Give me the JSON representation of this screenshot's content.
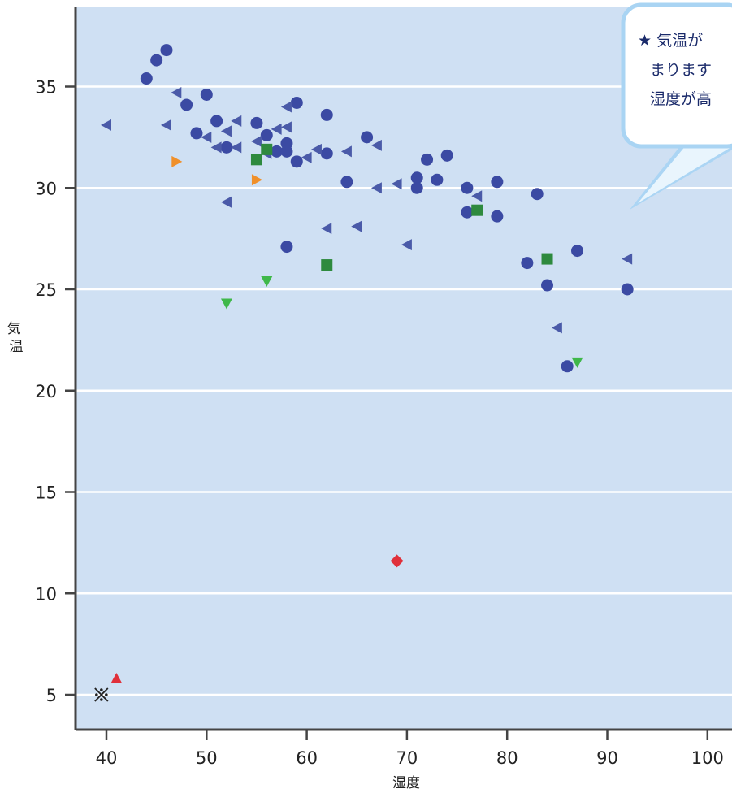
{
  "chart_data": {
    "type": "scatter",
    "title": "",
    "xlabel": "湿度",
    "ylabel": "気温",
    "xlim": [
      37,
      102
    ],
    "ylim": [
      3,
      38.5
    ],
    "xticks": [
      40,
      50,
      60,
      70,
      80,
      90,
      100
    ],
    "yticks": [
      5,
      10,
      15,
      20,
      25,
      30,
      35
    ],
    "grid": "horizontal",
    "background": "#cfe0f3",
    "annotation": {
      "lines": [
        "★ 気温が",
        "まります",
        "湿度が高"
      ]
    },
    "series": [
      {
        "marker": "circle",
        "color": "#3b4aa3",
        "points": [
          [
            44,
            35.4
          ],
          [
            45,
            36.3
          ],
          [
            46,
            36.8
          ],
          [
            48,
            34.1
          ],
          [
            49,
            32.7
          ],
          [
            50,
            34.6
          ],
          [
            51,
            33.3
          ],
          [
            52,
            32.0
          ],
          [
            55,
            33.2
          ],
          [
            56,
            32.6
          ],
          [
            57,
            31.8
          ],
          [
            58,
            32.2
          ],
          [
            58,
            31.8
          ],
          [
            58,
            27.1
          ],
          [
            59,
            34.2
          ],
          [
            59,
            31.3
          ],
          [
            62,
            33.6
          ],
          [
            62,
            31.7
          ],
          [
            64,
            30.3
          ],
          [
            66,
            32.5
          ],
          [
            71,
            30.5
          ],
          [
            71,
            30.0
          ],
          [
            72,
            31.4
          ],
          [
            73,
            30.4
          ],
          [
            74,
            31.6
          ],
          [
            76,
            30.0
          ],
          [
            76,
            28.8
          ],
          [
            79,
            30.3
          ],
          [
            79,
            28.6
          ],
          [
            82,
            26.3
          ],
          [
            83,
            29.7
          ],
          [
            84,
            25.2
          ],
          [
            86,
            21.2
          ],
          [
            87,
            26.9
          ],
          [
            92,
            25.0
          ]
        ]
      },
      {
        "marker": "triangle-left",
        "color": "#4a5aa8",
        "points": [
          [
            40,
            33.1
          ],
          [
            46,
            33.1
          ],
          [
            47,
            34.7
          ],
          [
            50,
            32.5
          ],
          [
            51,
            32.0
          ],
          [
            52,
            32.8
          ],
          [
            52,
            29.3
          ],
          [
            53,
            33.3
          ],
          [
            53,
            32.0
          ],
          [
            55,
            32.3
          ],
          [
            56,
            31.7
          ],
          [
            57,
            32.9
          ],
          [
            58,
            34.0
          ],
          [
            58,
            33.0
          ],
          [
            60,
            31.5
          ],
          [
            61,
            31.9
          ],
          [
            62,
            28.0
          ],
          [
            64,
            31.8
          ],
          [
            65,
            28.1
          ],
          [
            67,
            32.1
          ],
          [
            67,
            30.0
          ],
          [
            69,
            30.2
          ],
          [
            70,
            27.2
          ],
          [
            77,
            29.6
          ],
          [
            85,
            23.1
          ],
          [
            92,
            26.5
          ]
        ]
      },
      {
        "marker": "triangle-right",
        "color": "#f0902a",
        "points": [
          [
            47,
            31.3
          ],
          [
            55,
            30.4
          ]
        ]
      },
      {
        "marker": "square",
        "color": "#2e8a3e",
        "points": [
          [
            55,
            31.4
          ],
          [
            56,
            31.9
          ],
          [
            62,
            26.2
          ],
          [
            77,
            28.9
          ],
          [
            84,
            26.5
          ]
        ]
      },
      {
        "marker": "triangle-down",
        "color": "#3fb84a",
        "points": [
          [
            52,
            24.3
          ],
          [
            56,
            25.4
          ],
          [
            87,
            21.4
          ]
        ]
      },
      {
        "marker": "triangle-up",
        "color": "#e0303a",
        "points": [
          [
            41,
            5.8
          ]
        ]
      },
      {
        "marker": "diamond",
        "color": "#e0303a",
        "points": [
          [
            69,
            11.6
          ]
        ]
      },
      {
        "marker": "asterisk",
        "color": "#222222",
        "points": [
          [
            39.5,
            5.0
          ]
        ]
      }
    ]
  }
}
